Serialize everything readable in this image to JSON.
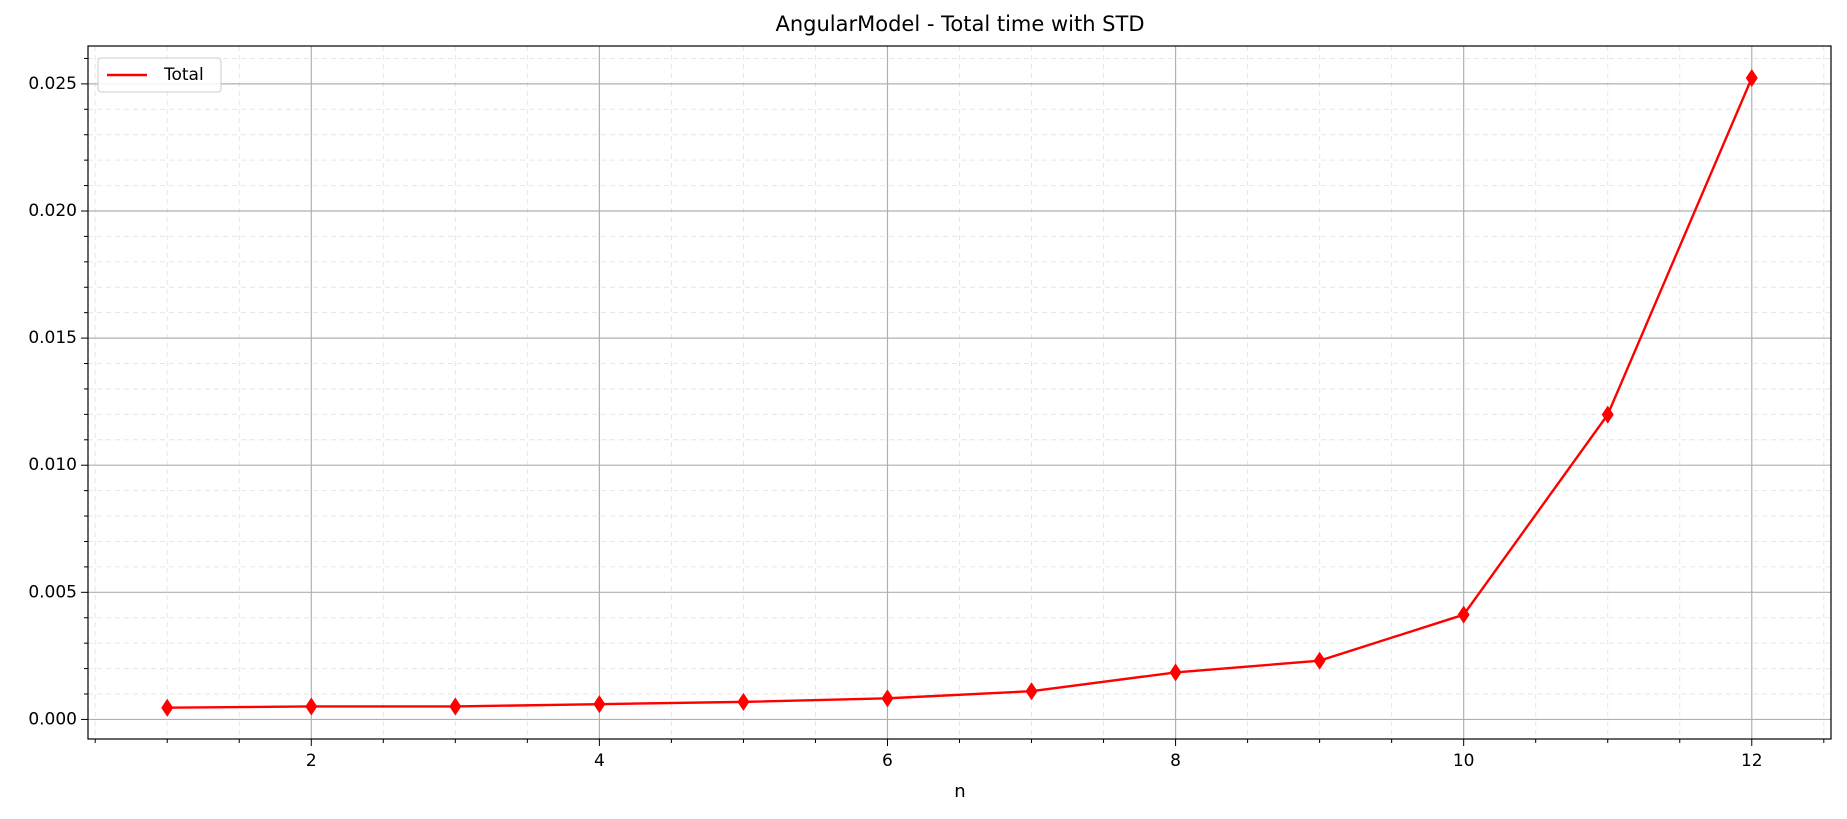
{
  "chart_data": {
    "type": "line",
    "title": "AngularModel - Total time with STD",
    "x_label": "n",
    "x": [
      1,
      2,
      3,
      4,
      5,
      6,
      7,
      8,
      9,
      10,
      11,
      12
    ],
    "series": [
      {
        "name": "Total",
        "color": "#ff0000",
        "marker": "thin_diamond",
        "values": [
          0.00046,
          0.00051,
          0.00051,
          0.0006,
          0.00069,
          0.00083,
          0.00111,
          0.00185,
          0.00231,
          0.00412,
          0.01199,
          0.02523
        ]
      }
    ],
    "xlim": [
      0.45,
      12.55
    ],
    "xticks": [
      2,
      4,
      6,
      8,
      10,
      12
    ],
    "ylim": [
      -0.00077,
      0.02649
    ],
    "yticks": [
      {
        "value": 0,
        "label": "0.000"
      },
      {
        "value": 0.005,
        "label": "0.005"
      },
      {
        "value": 0.01,
        "label": "0.010"
      },
      {
        "value": 0.015,
        "label": "0.015"
      },
      {
        "value": 0.02,
        "label": "0.020"
      },
      {
        "value": 0.025,
        "label": "0.025"
      }
    ],
    "grid": true,
    "minor_grid": true,
    "legend_position": "upper left"
  }
}
